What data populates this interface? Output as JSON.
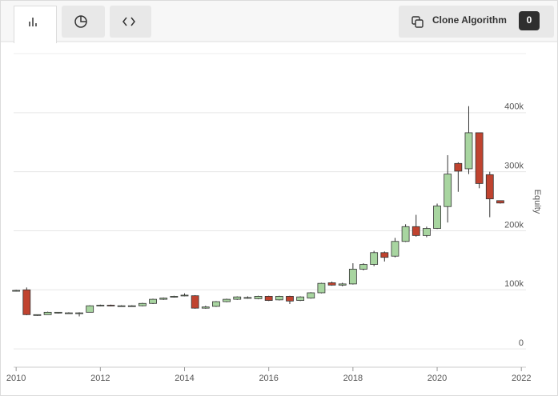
{
  "toolbar": {
    "button_label": "Clone Algorithm",
    "clone_count": 0
  },
  "chart_data": {
    "type": "candlestick",
    "y_label": "Equity",
    "x": [
      2010,
      2010.25,
      2010.5,
      2010.75,
      2011,
      2011.25,
      2011.5,
      2011.75,
      2012,
      2012.25,
      2012.5,
      2012.75,
      2013,
      2013.25,
      2013.5,
      2013.75,
      2014,
      2014.25,
      2014.5,
      2014.75,
      2015,
      2015.25,
      2015.5,
      2015.75,
      2016,
      2016.25,
      2016.5,
      2016.75,
      2017,
      2017.25,
      2017.5,
      2017.75,
      2018,
      2018.25,
      2018.5,
      2018.75,
      2019,
      2019.25,
      2019.5,
      2019.75,
      2020,
      2020.25,
      2020.5,
      2020.75,
      2021,
      2021.25,
      2021.5
    ],
    "open": [
      98000,
      100000,
      57000,
      58000,
      61000,
      61000,
      60000,
      62000,
      73000,
      74000,
      73000,
      73000,
      73000,
      77000,
      84000,
      88000,
      90000,
      90000,
      69000,
      72000,
      80000,
      84000,
      86000,
      85000,
      89000,
      83000,
      89000,
      82000,
      86000,
      95000,
      112000,
      108000,
      110000,
      135000,
      143000,
      163000,
      157000,
      182000,
      207000,
      192000,
      204000,
      241000,
      314000,
      305000,
      366000,
      295000,
      251000
    ],
    "high": [
      100000,
      104000,
      58000,
      63000,
      62000,
      62000,
      62000,
      74000,
      75000,
      75000,
      74000,
      74000,
      78000,
      85000,
      87000,
      90000,
      94000,
      91000,
      73000,
      81000,
      85000,
      89000,
      89000,
      90000,
      90000,
      90000,
      90000,
      89000,
      96000,
      112000,
      114000,
      112000,
      145000,
      145000,
      166000,
      165000,
      188000,
      211000,
      227000,
      207000,
      246000,
      328000,
      316000,
      411000,
      366000,
      300000,
      251000
    ],
    "low": [
      97000,
      57000,
      56000,
      58000,
      60000,
      60000,
      55000,
      62000,
      72000,
      72000,
      72000,
      72000,
      72000,
      76000,
      83000,
      87000,
      89000,
      68000,
      68000,
      71000,
      79000,
      83000,
      85000,
      84000,
      81000,
      82000,
      76000,
      81000,
      85000,
      94000,
      107000,
      106000,
      109000,
      133000,
      140000,
      148000,
      155000,
      181000,
      190000,
      189000,
      203000,
      214000,
      266000,
      296000,
      272000,
      223000,
      246000
    ],
    "close": [
      99000,
      58000,
      58000,
      62000,
      62000,
      61000,
      61000,
      73000,
      74000,
      73000,
      73000,
      73000,
      77000,
      84000,
      86000,
      89000,
      91000,
      69000,
      71000,
      80000,
      84000,
      88000,
      87000,
      89000,
      82000,
      89000,
      81000,
      88000,
      95000,
      111000,
      108000,
      110000,
      135000,
      143000,
      163000,
      155000,
      182000,
      207000,
      192000,
      204000,
      242000,
      296000,
      301000,
      366000,
      280000,
      254000,
      247000
    ],
    "up_color": "#a8d5a0",
    "down_color": "#c0432f",
    "xlim": [
      2009.94,
      2022.11
    ],
    "xticks": [
      2010,
      2012,
      2014,
      2016,
      2018,
      2020,
      2022
    ],
    "ylim": [
      -31000,
      500000
    ],
    "yticks": [
      0,
      {
        "value": 100000,
        "label": "100k"
      },
      {
        "value": 200000,
        "label": "200k"
      },
      {
        "value": 300000,
        "label": "300k"
      },
      {
        "value": 400000,
        "label": "400k"
      }
    ],
    "grid": true
  }
}
